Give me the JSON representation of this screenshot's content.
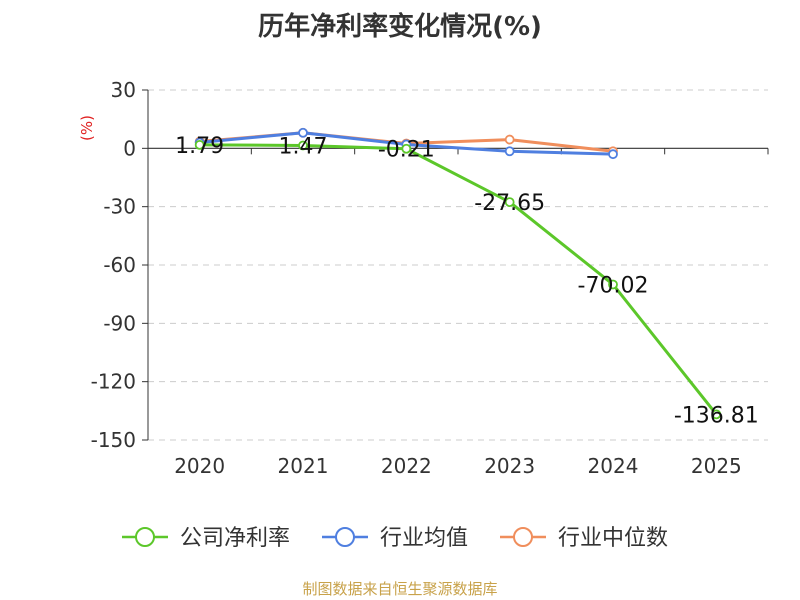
{
  "title": "历年净利率变化情况(%)",
  "footer": "制图数据来自恒生聚源数据库",
  "chart_data": {
    "type": "line",
    "ylabel": "(%)",
    "ylim": [
      -150,
      30
    ],
    "yticks": [
      30,
      0,
      -30,
      -60,
      -90,
      -120,
      -150
    ],
    "categories": [
      "2020",
      "2021",
      "2022",
      "2023",
      "2024",
      "2025"
    ],
    "grid": true,
    "legend_position": "bottom",
    "series": [
      {
        "name": "公司净利率",
        "color": "#5cc72a",
        "values": [
          1.79,
          1.47,
          -0.21,
          -27.65,
          -70.02,
          -136.81
        ],
        "labels": [
          "1.79",
          "1.47",
          "-0.21",
          "-27.65",
          "-70.02",
          "-136.81"
        ]
      },
      {
        "name": "行业均值",
        "color": "#4f7fe0",
        "values": [
          3.0,
          8.0,
          2.0,
          -1.5,
          -3.0,
          null
        ]
      },
      {
        "name": "行业中位数",
        "color": "#f08e5c",
        "values": [
          3.5,
          8.0,
          2.5,
          4.5,
          -1.5,
          null
        ]
      }
    ]
  }
}
